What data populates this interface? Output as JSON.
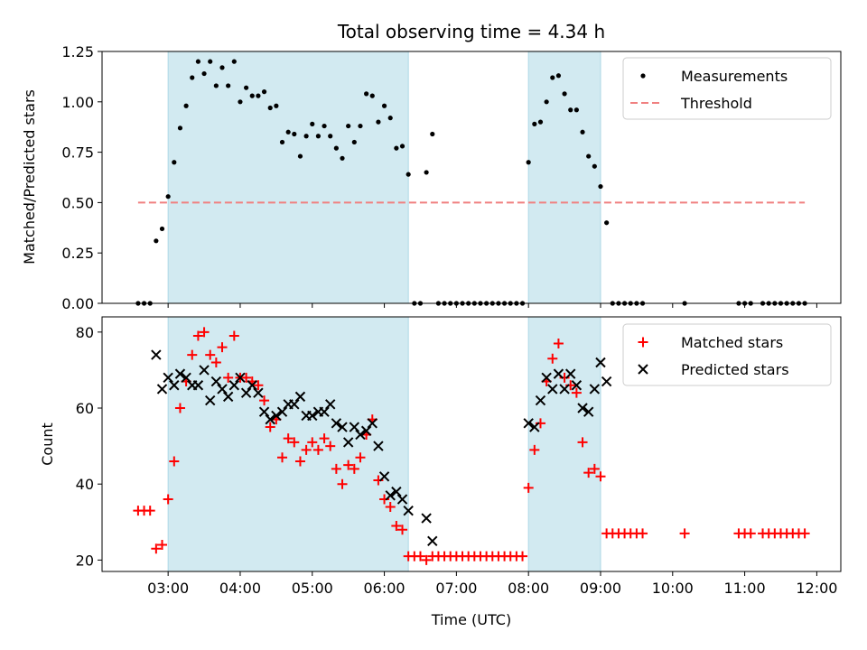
{
  "chart_data": [
    {
      "type": "scatter",
      "title": "Total observing time = 4.34 h",
      "xlabel": "",
      "ylabel": "Matched/Predicted stars",
      "xlim": [
        "02:05",
        "12:20"
      ],
      "ylim": [
        0,
        1.25
      ],
      "yticks": [
        "0.00",
        "0.25",
        "0.50",
        "0.75",
        "1.00",
        "1.25"
      ],
      "ytick_values": [
        0,
        0.25,
        0.5,
        0.75,
        1.0,
        1.25
      ],
      "grid": false,
      "legend_position": "top-right",
      "shaded_intervals": [
        [
          "03:00",
          "06:20"
        ],
        [
          "08:00",
          "09:00"
        ]
      ],
      "shade_color": "#add8e6",
      "series": [
        {
          "name": "Measurements",
          "kind": "scatter",
          "marker": "dot",
          "color": "#000000",
          "x": [
            "02:35",
            "02:40",
            "02:45",
            "02:50",
            "02:55",
            "03:00",
            "03:05",
            "03:10",
            "03:15",
            "03:20",
            "03:25",
            "03:30",
            "03:35",
            "03:40",
            "03:45",
            "03:50",
            "03:55",
            "04:00",
            "04:05",
            "04:10",
            "04:15",
            "04:20",
            "04:25",
            "04:30",
            "04:35",
            "04:40",
            "04:45",
            "04:50",
            "04:55",
            "05:00",
            "05:05",
            "05:10",
            "05:15",
            "05:20",
            "05:25",
            "05:30",
            "05:35",
            "05:40",
            "05:45",
            "05:50",
            "05:55",
            "06:00",
            "06:05",
            "06:10",
            "06:15",
            "06:20",
            "06:25",
            "06:30",
            "06:35",
            "06:40",
            "06:45",
            "06:50",
            "06:55",
            "07:00",
            "07:05",
            "07:10",
            "07:15",
            "07:20",
            "07:25",
            "07:30",
            "07:35",
            "07:40",
            "07:45",
            "07:50",
            "07:55",
            "08:00",
            "08:05",
            "08:10",
            "08:15",
            "08:20",
            "08:25",
            "08:30",
            "08:35",
            "08:40",
            "08:45",
            "08:50",
            "08:55",
            "09:00",
            "09:05",
            "09:10",
            "09:15",
            "09:20",
            "09:25",
            "09:30",
            "09:35",
            "10:10",
            "10:55",
            "11:00",
            "11:05",
            "11:15",
            "11:20",
            "11:25",
            "11:30",
            "11:35",
            "11:40",
            "11:45",
            "11:50"
          ],
          "y": [
            0,
            0,
            0,
            0.31,
            0.37,
            0.53,
            0.7,
            0.87,
            0.98,
            1.12,
            1.2,
            1.14,
            1.2,
            1.08,
            1.17,
            1.08,
            1.2,
            1.0,
            1.07,
            1.03,
            1.03,
            1.05,
            0.97,
            0.98,
            0.8,
            0.85,
            0.84,
            0.73,
            0.83,
            0.89,
            0.83,
            0.88,
            0.83,
            0.77,
            0.72,
            0.88,
            0.8,
            0.88,
            1.04,
            1.03,
            0.9,
            0.98,
            0.92,
            0.77,
            0.78,
            0.64,
            0,
            0,
            0.65,
            0.84,
            0,
            0,
            0,
            0,
            0,
            0,
            0,
            0,
            0,
            0,
            0,
            0,
            0,
            0,
            0,
            0.7,
            0.89,
            0.9,
            1.0,
            1.12,
            1.13,
            1.04,
            0.96,
            0.96,
            0.85,
            0.73,
            0.68,
            0.58,
            0.4,
            0,
            0,
            0,
            0,
            0,
            0,
            0,
            0,
            0,
            0,
            0,
            0,
            0,
            0,
            0,
            0,
            0,
            0
          ]
        },
        {
          "name": "Threshold",
          "kind": "line",
          "style": "dashed",
          "color": "#f08080",
          "x": [
            "02:35",
            "11:50"
          ],
          "y": [
            0.5,
            0.5
          ]
        }
      ]
    },
    {
      "type": "scatter",
      "title": "",
      "xlabel": "Time (UTC)",
      "ylabel": "Count",
      "xlim": [
        "02:05",
        "12:20"
      ],
      "ylim": [
        17,
        84
      ],
      "xticks": [
        "03:00",
        "04:00",
        "05:00",
        "06:00",
        "07:00",
        "08:00",
        "09:00",
        "10:00",
        "11:00",
        "12:00"
      ],
      "yticks": [
        "20",
        "40",
        "60",
        "80"
      ],
      "ytick_values": [
        20,
        40,
        60,
        80
      ],
      "grid": false,
      "legend_position": "top-right",
      "shaded_intervals": [
        [
          "03:00",
          "06:20"
        ],
        [
          "08:00",
          "09:00"
        ]
      ],
      "shade_color": "#add8e6",
      "series": [
        {
          "name": "Matched stars",
          "kind": "scatter",
          "marker": "plus",
          "color": "#ff0000",
          "x": [
            "02:35",
            "02:40",
            "02:45",
            "02:50",
            "02:55",
            "03:00",
            "03:05",
            "03:10",
            "03:15",
            "03:20",
            "03:25",
            "03:30",
            "03:35",
            "03:40",
            "03:45",
            "03:50",
            "03:55",
            "04:00",
            "04:05",
            "04:10",
            "04:15",
            "04:20",
            "04:25",
            "04:30",
            "04:35",
            "04:40",
            "04:45",
            "04:50",
            "04:55",
            "05:00",
            "05:05",
            "05:10",
            "05:15",
            "05:20",
            "05:25",
            "05:30",
            "05:35",
            "05:40",
            "05:45",
            "05:50",
            "05:55",
            "06:00",
            "06:05",
            "06:10",
            "06:15",
            "06:20",
            "06:25",
            "06:30",
            "06:35",
            "06:40",
            "06:45",
            "06:50",
            "06:55",
            "07:00",
            "07:05",
            "07:10",
            "07:15",
            "07:20",
            "07:25",
            "07:30",
            "07:35",
            "07:40",
            "07:45",
            "07:50",
            "07:55",
            "08:00",
            "08:05",
            "08:10",
            "08:15",
            "08:20",
            "08:25",
            "08:30",
            "08:35",
            "08:40",
            "08:45",
            "08:50",
            "08:55",
            "09:00",
            "09:05",
            "09:10",
            "09:15",
            "09:20",
            "09:25",
            "09:30",
            "09:35",
            "10:10",
            "10:55",
            "11:00",
            "11:05",
            "11:15",
            "11:20",
            "11:25",
            "11:30",
            "11:35",
            "11:40",
            "11:45",
            "11:50"
          ],
          "y": [
            33,
            33,
            33,
            23,
            24,
            36,
            46,
            60,
            67,
            74,
            79,
            80,
            74,
            72,
            76,
            68,
            79,
            68,
            68,
            67,
            66,
            62,
            55,
            57,
            47,
            52,
            51,
            46,
            49,
            51,
            49,
            52,
            50,
            44,
            40,
            45,
            44,
            47,
            53,
            57,
            41,
            36,
            34,
            29,
            28,
            21,
            21,
            21,
            20,
            21,
            21,
            21,
            21,
            21,
            21,
            21,
            21,
            21,
            21,
            21,
            21,
            21,
            21,
            21,
            21,
            39,
            49,
            56,
            67,
            73,
            77,
            68,
            66,
            64,
            51,
            43,
            44,
            42,
            27,
            27,
            27,
            27,
            27,
            27,
            27,
            27,
            27,
            27,
            27,
            27,
            27,
            27,
            27,
            27,
            27,
            27,
            27
          ]
        },
        {
          "name": "Predicted stars",
          "kind": "scatter",
          "marker": "x",
          "color": "#000000",
          "x": [
            "02:50",
            "02:55",
            "03:00",
            "03:05",
            "03:10",
            "03:15",
            "03:20",
            "03:25",
            "03:30",
            "03:35",
            "03:40",
            "03:45",
            "03:50",
            "03:55",
            "04:00",
            "04:05",
            "04:10",
            "04:15",
            "04:20",
            "04:25",
            "04:30",
            "04:35",
            "04:40",
            "04:45",
            "04:50",
            "04:55",
            "05:00",
            "05:05",
            "05:10",
            "05:15",
            "05:20",
            "05:25",
            "05:30",
            "05:35",
            "05:40",
            "05:45",
            "05:50",
            "05:55",
            "06:00",
            "06:05",
            "06:10",
            "06:15",
            "06:20",
            "06:35",
            "06:40",
            "08:00",
            "08:05",
            "08:10",
            "08:15",
            "08:20",
            "08:25",
            "08:30",
            "08:35",
            "08:40",
            "08:45",
            "08:50",
            "08:55",
            "09:00",
            "09:05"
          ],
          "y": [
            74,
            65,
            68,
            66,
            69,
            68,
            66,
            66,
            70,
            62,
            67,
            65,
            63,
            66,
            68,
            64,
            66,
            64,
            59,
            57,
            58,
            59,
            61,
            61,
            63,
            58,
            58,
            59,
            59,
            61,
            56,
            55,
            51,
            55,
            53,
            54,
            56,
            50,
            42,
            37,
            38,
            36,
            33,
            31,
            25,
            56,
            55,
            62,
            68,
            65,
            69,
            65,
            69,
            66,
            60,
            59,
            65,
            72,
            67
          ]
        }
      ]
    }
  ]
}
